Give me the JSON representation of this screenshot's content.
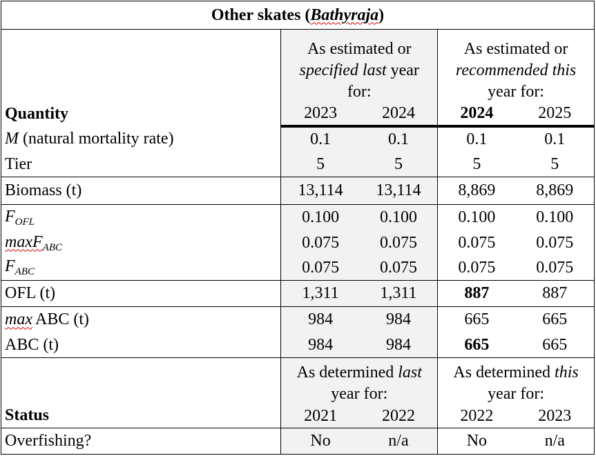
{
  "title": {
    "prefix": "Other skates (",
    "genus": "Bathyraja",
    "suffix": ")"
  },
  "header": {
    "quantity_label": "Quantity",
    "last_year_line1": "As estimated or",
    "last_year_line2_italic": "specified last",
    "last_year_line2_rest": " year",
    "last_year_line3": "for:",
    "this_year_line1": "As estimated or",
    "this_year_line2_italic": "recommended this",
    "this_year_line3": "year for:",
    "years": [
      "2023",
      "2024",
      "2024",
      "2025"
    ]
  },
  "rows": {
    "m": {
      "symbol": "M",
      "text": " (natural mortality rate)",
      "values": [
        "0.1",
        "0.1",
        "0.1",
        "0.1"
      ]
    },
    "tier": {
      "label": "Tier",
      "values": [
        "5",
        "5",
        "5",
        "5"
      ]
    },
    "biomass": {
      "label": "Biomass (t)",
      "values": [
        "13,114",
        "13,114",
        "8,869",
        "8,869"
      ]
    },
    "fofl": {
      "base": "F",
      "sub": "OFL",
      "values": [
        "0.100",
        "0.100",
        "0.100",
        "0.100"
      ]
    },
    "maxfabc": {
      "base": "maxF",
      "sub": "ABC",
      "values": [
        "0.075",
        "0.075",
        "0.075",
        "0.075"
      ]
    },
    "fabc": {
      "base": "F",
      "sub": "ABC",
      "values": [
        "0.075",
        "0.075",
        "0.075",
        "0.075"
      ]
    },
    "ofl": {
      "label": "OFL (t)",
      "values": [
        "1,311",
        "1,311",
        "887",
        "887"
      ]
    },
    "maxabc": {
      "italic": "max",
      "rest": "ABC (t)",
      "values": [
        "984",
        "984",
        "665",
        "665"
      ]
    },
    "abc": {
      "label": "ABC (t)",
      "values": [
        "984",
        "984",
        "665",
        "665"
      ]
    }
  },
  "status_header": {
    "label": "Status",
    "last_line1_plain": "As determined ",
    "last_line1_italic": "last",
    "last_line2": "year for:",
    "this_line1_plain": "As determined ",
    "this_line1_italic": "this",
    "this_line2": "year for:",
    "years": [
      "2021",
      "2022",
      "2022",
      "2023"
    ]
  },
  "overfishing": {
    "label": "Overfishing?",
    "values": [
      "No",
      "n/a",
      "No",
      "n/a"
    ]
  }
}
